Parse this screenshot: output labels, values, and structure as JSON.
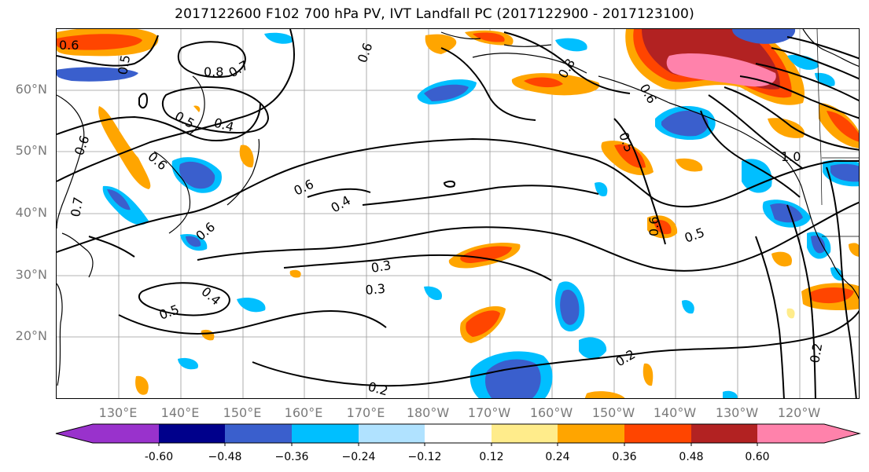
{
  "title": "2017122600 F102 700 hPa PV, IVT Landfall PC (2017122900 - 2017123100)",
  "latitude_labels": [
    "60°N",
    "50°N",
    "40°N",
    "30°N",
    "20°N"
  ],
  "longitude_labels": [
    "130°E",
    "140°E",
    "150°E",
    "160°E",
    "170°E",
    "180°W",
    "170°W",
    "160°W",
    "150°W",
    "140°W",
    "130°W",
    "120°W"
  ],
  "colorbar": {
    "ticks": [
      "-0.60",
      "−0.48",
      "−0.36",
      "−0.24",
      "−0.12",
      "0.12",
      "0.24",
      "0.36",
      "0.48",
      "0.60"
    ],
    "colors": [
      "#9932cc",
      "#00008b",
      "#3a5fcd",
      "#00bfff",
      "#b0e2ff",
      "#ffffff",
      "#ffec8b",
      "#ffa500",
      "#ff4500",
      "#b22222",
      "#ff82ab"
    ]
  },
  "contour_labels": [
    "0.6",
    "0.5",
    "0.8",
    "0.7",
    "0.5",
    "0.4",
    "0.6",
    "0.6",
    "0.6",
    "0.4",
    "0.7",
    "0.6",
    "0.6",
    "0.8",
    "0.5",
    "0.6",
    "0.6",
    "0.5",
    "1.0",
    "0.3",
    "0.3",
    "0.5",
    "0.4",
    "0.2",
    "0.2",
    "0.2"
  ]
}
